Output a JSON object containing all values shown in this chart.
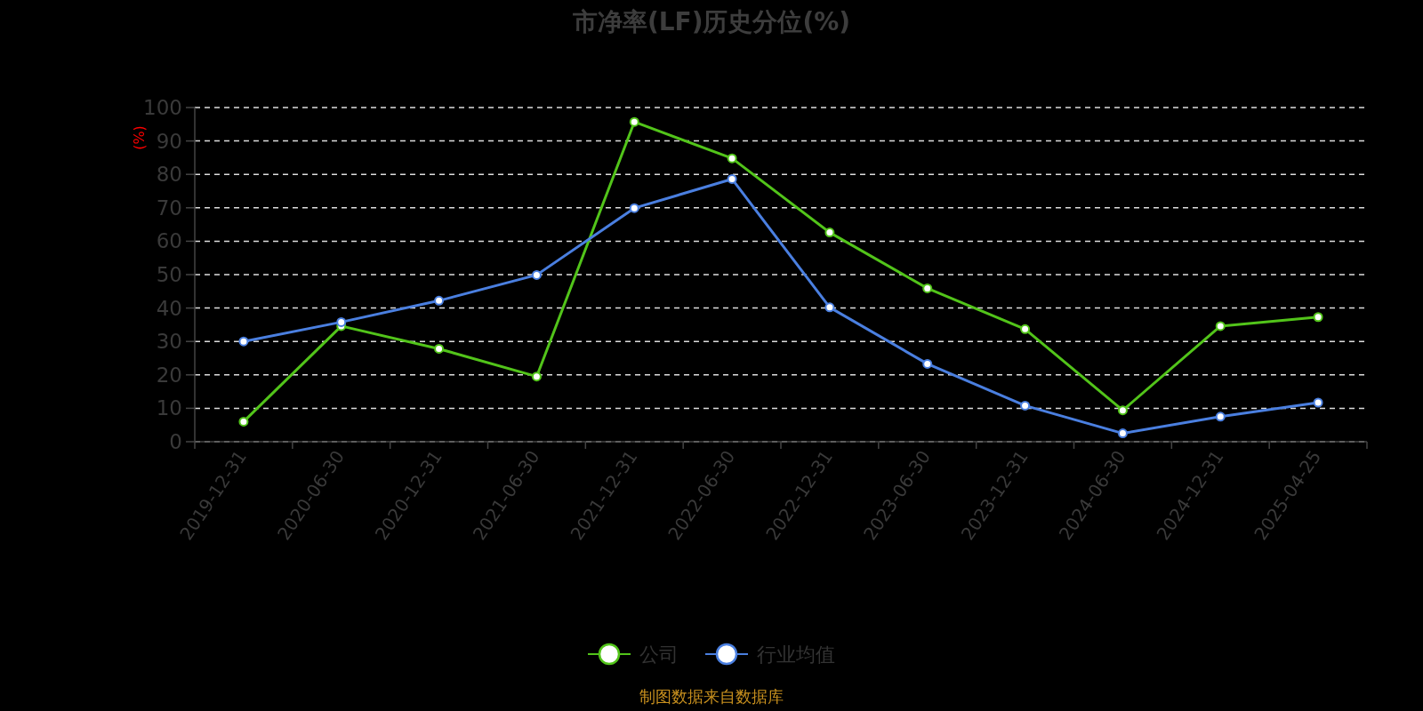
{
  "chart_data": {
    "type": "line",
    "title": "市净率(LF)历史分位(%)",
    "ylabel": "(%)",
    "categories": [
      "2019-12-31",
      "2020-06-30",
      "2020-12-31",
      "2021-06-30",
      "2021-12-31",
      "2022-06-30",
      "2022-12-31",
      "2023-06-30",
      "2023-12-31",
      "2024-06-30",
      "2024-12-31",
      "2025-04-25"
    ],
    "series": [
      {
        "name": "公司",
        "color": "#52c41a",
        "values": [
          6,
          34.6,
          27.8,
          19.5,
          95.7,
          84.8,
          62.6,
          45.9,
          33.7,
          9.4,
          34.6,
          37.3
        ]
      },
      {
        "name": "行业均值",
        "color": "#4a7fe0",
        "values": [
          30,
          35.8,
          42.2,
          49.9,
          69.9,
          78.6,
          40.2,
          23.3,
          10.8,
          2.5,
          7.5,
          11.7
        ]
      }
    ],
    "ylim": [
      0,
      100
    ],
    "yticks": [
      0,
      10,
      20,
      30,
      40,
      50,
      60,
      70,
      80,
      90,
      100
    ],
    "grid": "y",
    "legend": "bottom",
    "marker": "circle",
    "line_style": "solid",
    "annotations": [
      "制图数据来自数据库"
    ]
  }
}
